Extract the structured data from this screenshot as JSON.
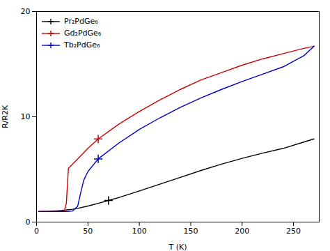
{
  "chart_data": {
    "type": "line",
    "title": "",
    "xlabel": "T (K)",
    "ylabel": "R/R2K",
    "xlim": [
      0,
      275
    ],
    "ylim": [
      0,
      20
    ],
    "xticks": [
      0,
      50,
      100,
      150,
      200,
      250
    ],
    "yticks": [
      0,
      10,
      20
    ],
    "grid": false,
    "legend": "upper left",
    "marker": "plus",
    "series": [
      {
        "name": "Pr₂PdGe₆",
        "color": "#000000",
        "x": [
          2,
          5,
          10,
          15,
          20,
          25,
          30,
          35,
          40,
          50,
          60,
          70,
          80,
          100,
          120,
          140,
          160,
          180,
          200,
          220,
          240,
          260,
          270
        ],
        "values": [
          1.0,
          1.01,
          1.02,
          1.04,
          1.07,
          1.11,
          1.16,
          1.22,
          1.3,
          1.52,
          1.78,
          2.05,
          2.33,
          2.95,
          3.6,
          4.25,
          4.9,
          5.5,
          6.05,
          6.55,
          7.0,
          7.6,
          7.9
        ]
      },
      {
        "name": "Gd₂PdGe₆",
        "color": "#cc0000",
        "x": [
          2,
          5,
          10,
          15,
          20,
          25,
          27,
          29,
          31,
          35,
          40,
          50,
          60,
          80,
          100,
          120,
          140,
          160,
          180,
          200,
          220,
          240,
          260,
          270
        ],
        "values": [
          1.0,
          1.0,
          1.0,
          1.0,
          1.0,
          1.0,
          1.05,
          1.8,
          5.1,
          5.5,
          6.0,
          7.0,
          7.9,
          9.3,
          10.5,
          11.6,
          12.6,
          13.5,
          14.2,
          14.9,
          15.5,
          16.0,
          16.5,
          16.7
        ]
      },
      {
        "name": "Tb₂PdGe₆",
        "color": "#0000cc",
        "x": [
          2,
          5,
          10,
          15,
          20,
          25,
          30,
          35,
          40,
          43,
          46,
          50,
          60,
          80,
          100,
          120,
          140,
          160,
          180,
          200,
          220,
          240,
          260,
          270
        ],
        "values": [
          1.0,
          1.0,
          1.0,
          1.0,
          1.0,
          1.0,
          1.0,
          1.05,
          1.5,
          2.8,
          4.0,
          4.8,
          6.0,
          7.5,
          8.8,
          9.9,
          10.9,
          11.8,
          12.6,
          13.35,
          14.05,
          14.75,
          15.8,
          16.7
        ]
      }
    ]
  }
}
